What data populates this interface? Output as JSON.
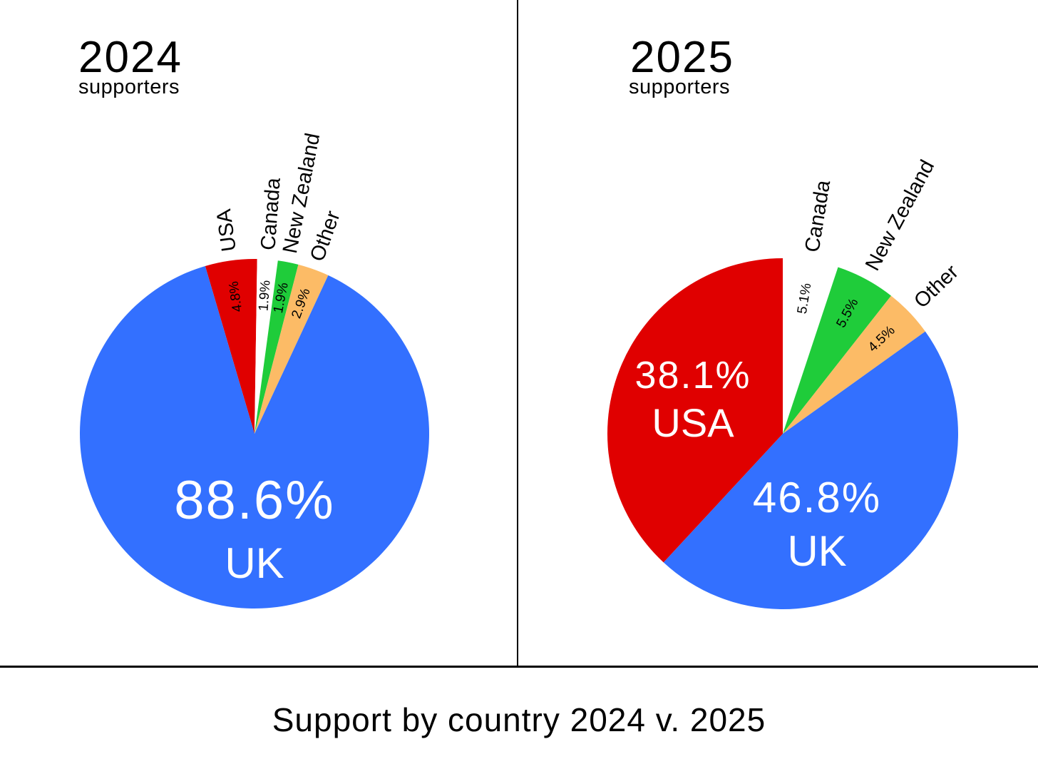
{
  "chart_data": [
    {
      "type": "pie",
      "title": "2024",
      "subtitle": "supporters",
      "slices": [
        {
          "label": "UK",
          "value": 88.6,
          "value_label": "88.6%",
          "color": "#3370ff"
        },
        {
          "label": "USA",
          "value": 4.8,
          "value_label": "4.8%",
          "color": "#e00000"
        },
        {
          "label": "Canada",
          "value": 1.9,
          "value_label": "1.9%",
          "color": "#ffffff"
        },
        {
          "label": "New Zealand",
          "value": 1.9,
          "value_label": "1.9%",
          "color": "#1fcc3a"
        },
        {
          "label": "Other",
          "value": 2.9,
          "value_label": "2.9%",
          "color": "#fcbb66"
        }
      ]
    },
    {
      "type": "pie",
      "title": "2025",
      "subtitle": "supporters",
      "slices": [
        {
          "label": "UK",
          "value": 46.8,
          "value_label": "46.8%",
          "color": "#3370ff"
        },
        {
          "label": "USA",
          "value": 38.1,
          "value_label": "38.1%",
          "color": "#e00000"
        },
        {
          "label": "Canada",
          "value": 5.1,
          "value_label": "5.1%",
          "color": "#ffffff"
        },
        {
          "label": "New Zealand",
          "value": 5.5,
          "value_label": "5.5%",
          "color": "#1fcc3a"
        },
        {
          "label": "Other",
          "value": 4.5,
          "value_label": "4.5%",
          "color": "#fcbb66"
        }
      ]
    }
  ],
  "caption": "Support by country 2024 v. 2025"
}
